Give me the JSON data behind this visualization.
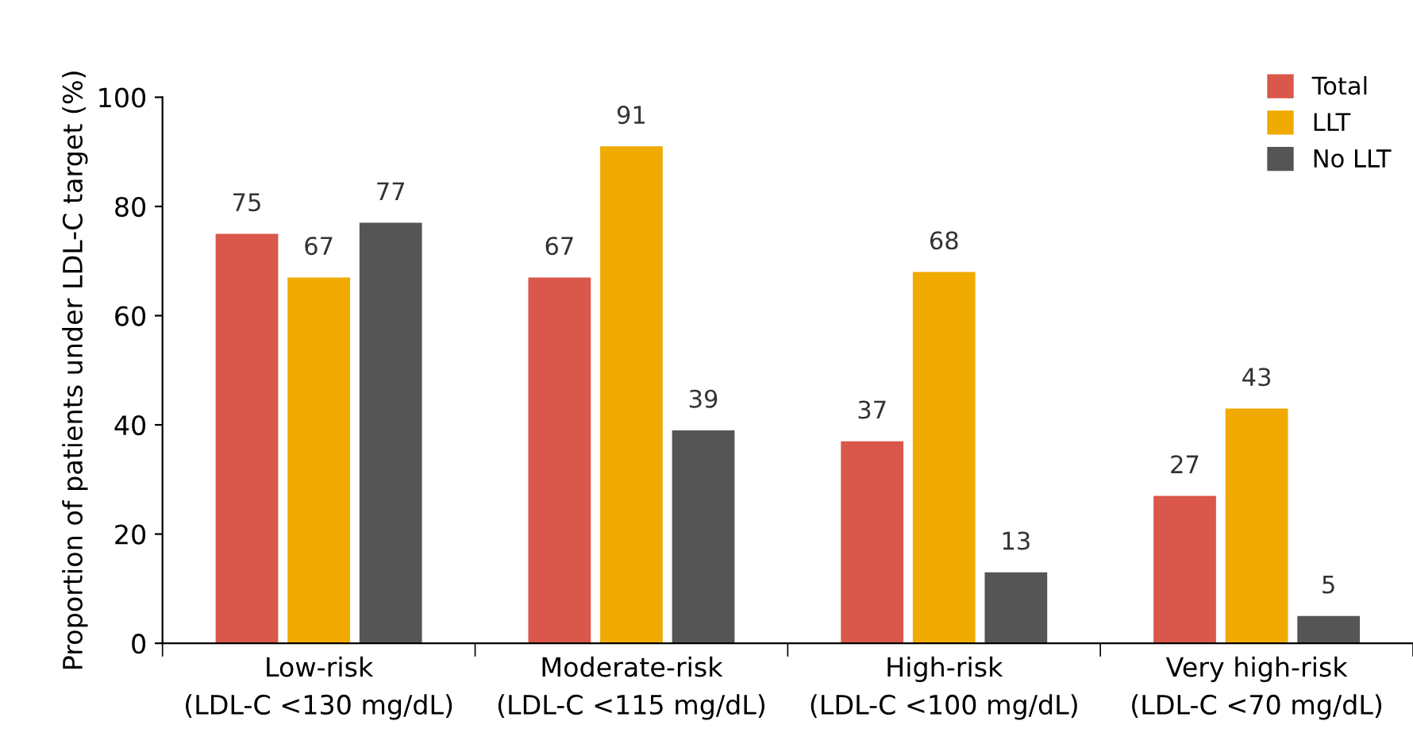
{
  "chart_data": {
    "type": "bar",
    "ylabel": "Proportion of patients under LDL-C target (%)",
    "categories": [
      "Low-risk\n(LDL-C <130 mg/dL)",
      "Moderate-risk\n(LDL-C <115 mg/dL)",
      "High-risk\n(LDL-C <100 mg/dL)",
      "Very high-risk\n(LDL-C <70 mg/dL)"
    ],
    "series": [
      {
        "name": "Total",
        "color": "#d9574b",
        "values": [
          75,
          67,
          37,
          27
        ]
      },
      {
        "name": "LLT",
        "color": "#f0aa00",
        "values": [
          67,
          91,
          68,
          43
        ]
      },
      {
        "name": "No LLT",
        "color": "#555555",
        "values": [
          77,
          39,
          13,
          5
        ]
      }
    ],
    "ylim": [
      0,
      100
    ],
    "yticks": [
      0,
      20,
      40,
      60,
      80,
      100
    ],
    "grid": false,
    "legend": "top right",
    "data_labels": true
  }
}
